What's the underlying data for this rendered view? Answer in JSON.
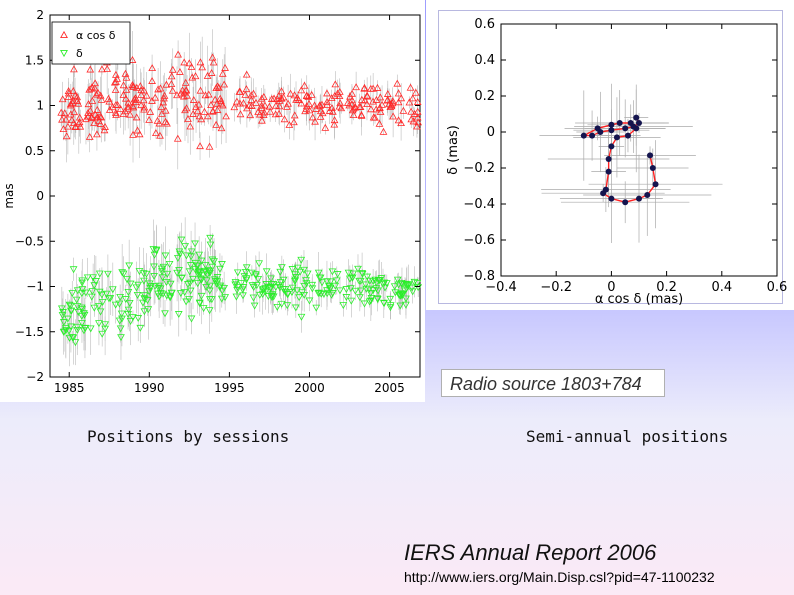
{
  "left_label": "Positions by sessions",
  "right_label": "Semi-annual positions",
  "source_caption": "Radio source 1803+784",
  "report_title": "IERS Annual Report 2006",
  "report_url": "http://www.iers.org/Main.Disp.csl?pid=47-1100232",
  "colors": {
    "alpha_series": "#ff2a2a",
    "delta_series": "#2aee2a",
    "error_bars": "#aaaaaa",
    "semi_points": "#14144e",
    "semi_line": "#ff2020"
  },
  "chart_data": [
    {
      "type": "scatter",
      "title": "",
      "xlabel": "",
      "ylabel": "mas",
      "xlim": [
        1983.8,
        2006.9
      ],
      "ylim": [
        -2,
        2
      ],
      "xticks": [
        1985,
        1990,
        1995,
        2000,
        2005
      ],
      "yticks": [
        -2,
        -1.5,
        -1,
        -0.5,
        0,
        0.5,
        1,
        1.5,
        2
      ],
      "legend": "top-left",
      "series": [
        {
          "name": "α cos δ",
          "marker": "triangle-up",
          "center": 1.0,
          "spread": 0.35,
          "x_range": [
            1984.5,
            2006.9
          ],
          "gap": [
            1994.8,
            1995.3
          ],
          "sample_points": [
            [
              1985,
              1.0
            ],
            [
              1986,
              0.9
            ],
            [
              1987,
              1.1
            ],
            [
              1988,
              1.2
            ],
            [
              1989,
              1.0
            ],
            [
              1990,
              0.95
            ],
            [
              1991,
              1.05
            ],
            [
              1992,
              1.1
            ],
            [
              1993,
              1.0
            ],
            [
              1994,
              1.05
            ],
            [
              1996,
              1.05
            ],
            [
              1997,
              1.0
            ],
            [
              1998,
              1.0
            ],
            [
              1999,
              1.0
            ],
            [
              2000,
              0.95
            ],
            [
              2001,
              1.0
            ],
            [
              2002,
              1.0
            ],
            [
              2003,
              1.05
            ],
            [
              2004,
              1.0
            ],
            [
              2005,
              1.0
            ],
            [
              2006,
              1.0
            ]
          ]
        },
        {
          "name": "δ",
          "marker": "triangle-down",
          "center": -1.0,
          "spread": 0.35,
          "x_range": [
            1984.5,
            2006.9
          ],
          "gap": [
            1994.8,
            1995.3
          ],
          "sample_points": [
            [
              1985,
              -1.3
            ],
            [
              1986,
              -1.25
            ],
            [
              1987,
              -1.2
            ],
            [
              1988,
              -1.15
            ],
            [
              1989,
              -1.1
            ],
            [
              1990,
              -1.0
            ],
            [
              1991,
              -0.9
            ],
            [
              1992,
              -0.85
            ],
            [
              1993,
              -0.9
            ],
            [
              1994,
              -0.95
            ],
            [
              1996,
              -0.95
            ],
            [
              1997,
              -1.0
            ],
            [
              1998,
              -1.0
            ],
            [
              1999,
              -1.0
            ],
            [
              2000,
              -1.05
            ],
            [
              2001,
              -1.0
            ],
            [
              2002,
              -1.0
            ],
            [
              2003,
              -1.0
            ],
            [
              2004,
              -1.0
            ],
            [
              2005,
              -1.05
            ],
            [
              2006,
              -1.05
            ]
          ]
        }
      ]
    },
    {
      "type": "line",
      "title": "",
      "xlabel": "α cos δ (mas)",
      "ylabel": "δ (mas)",
      "xlim": [
        -0.4,
        0.6
      ],
      "ylim": [
        -0.8,
        0.6
      ],
      "xticks": [
        -0.4,
        -0.2,
        0,
        0.2,
        0.4,
        0.6
      ],
      "yticks": [
        -0.8,
        -0.6,
        -0.4,
        -0.2,
        0,
        0.2,
        0.4,
        0.6
      ],
      "series": [
        {
          "points": [
            [
              0.09,
              0.08
            ],
            [
              0.1,
              0.05
            ],
            [
              0.08,
              0.03
            ],
            [
              0.05,
              0.02
            ],
            [
              0.0,
              0.01
            ],
            [
              -0.04,
              0.0
            ],
            [
              -0.07,
              -0.02
            ],
            [
              -0.1,
              -0.02
            ],
            [
              -0.05,
              0.02
            ],
            [
              0.0,
              0.04
            ],
            [
              0.03,
              0.05
            ],
            [
              0.07,
              0.05
            ],
            [
              0.09,
              0.02
            ],
            [
              0.06,
              -0.02
            ],
            [
              0.02,
              -0.03
            ],
            [
              0.0,
              -0.08
            ],
            [
              -0.01,
              -0.15
            ],
            [
              -0.01,
              -0.22
            ],
            [
              -0.02,
              -0.32
            ],
            [
              -0.03,
              -0.34
            ],
            [
              0.0,
              -0.37
            ],
            [
              0.05,
              -0.39
            ],
            [
              0.1,
              -0.37
            ],
            [
              0.13,
              -0.35
            ],
            [
              0.16,
              -0.29
            ],
            [
              0.15,
              -0.2
            ],
            [
              0.14,
              -0.13
            ]
          ]
        }
      ]
    }
  ]
}
